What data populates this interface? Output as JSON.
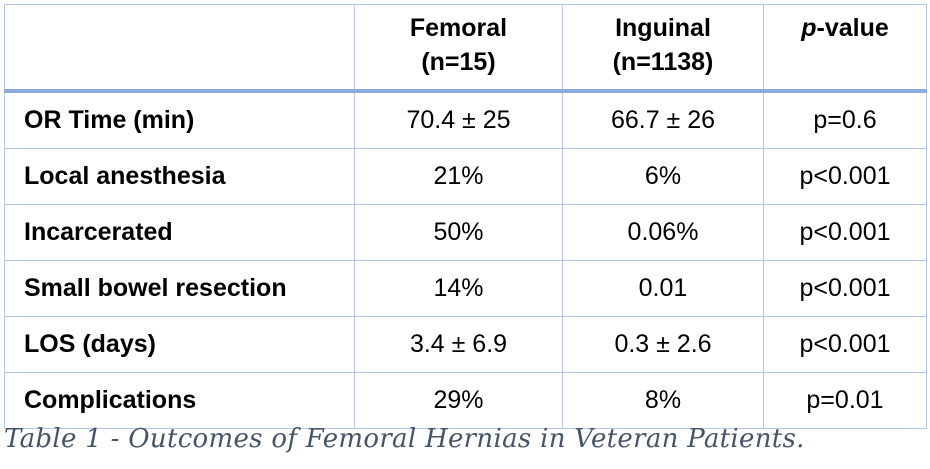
{
  "table": {
    "headers": [
      {
        "line1": "",
        "line2": ""
      },
      {
        "line1": "Femoral",
        "line2": "(n=15)"
      },
      {
        "line1": "Inguinal",
        "line2": "(n=1138)"
      },
      {
        "line1_italic": "p",
        "line1_rest": "-value",
        "line2": ""
      }
    ],
    "rows": [
      {
        "label": "OR Time (min)",
        "femoral": "70.4 ± 25",
        "inguinal": "66.7 ± 26",
        "pvalue": "p=0.6"
      },
      {
        "label": "Local anesthesia",
        "femoral": "21%",
        "inguinal": "6%",
        "pvalue": "p<0.001"
      },
      {
        "label": "Incarcerated",
        "femoral": "50%",
        "inguinal": "0.06%",
        "pvalue": "p<0.001"
      },
      {
        "label": "Small bowel resection",
        "femoral": "14%",
        "inguinal": "0.01",
        "pvalue": "p<0.001"
      },
      {
        "label": "LOS (days)",
        "femoral": "3.4 ± 6.9",
        "inguinal": "0.3 ± 2.6",
        "pvalue": "p<0.001"
      },
      {
        "label": "Complications",
        "femoral": "29%",
        "inguinal": "8%",
        "pvalue": "p=0.01"
      }
    ]
  },
  "caption": "Table 1 - Outcomes of Femoral Hernias in Veteran Patients.",
  "colors": {
    "grid": "#b4c7e7",
    "header_rule": "#8eaadb",
    "caption": "#44546a"
  }
}
